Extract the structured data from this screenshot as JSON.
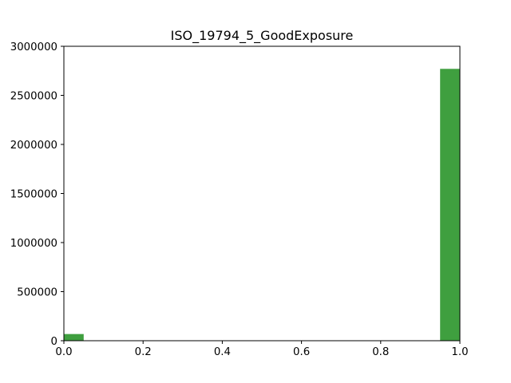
{
  "chart_data": {
    "type": "bar",
    "title": "ISO_19794_5_GoodExposure",
    "xlabel": "",
    "ylabel": "",
    "xlim": [
      0.0,
      1.0
    ],
    "ylim": [
      0,
      3000000
    ],
    "xticks": [
      "0.0",
      "0.2",
      "0.4",
      "0.6",
      "0.8",
      "1.0"
    ],
    "yticks": [
      "0",
      "500000",
      "1000000",
      "1500000",
      "2000000",
      "2500000",
      "3000000"
    ],
    "bin_width": 0.05,
    "bins": [
      {
        "x0": 0.0,
        "x1": 0.05,
        "value": 68000
      },
      {
        "x0": 0.95,
        "x1": 1.0,
        "value": 2770000
      }
    ],
    "bar_color": "#3f9f3f",
    "grid": false
  }
}
